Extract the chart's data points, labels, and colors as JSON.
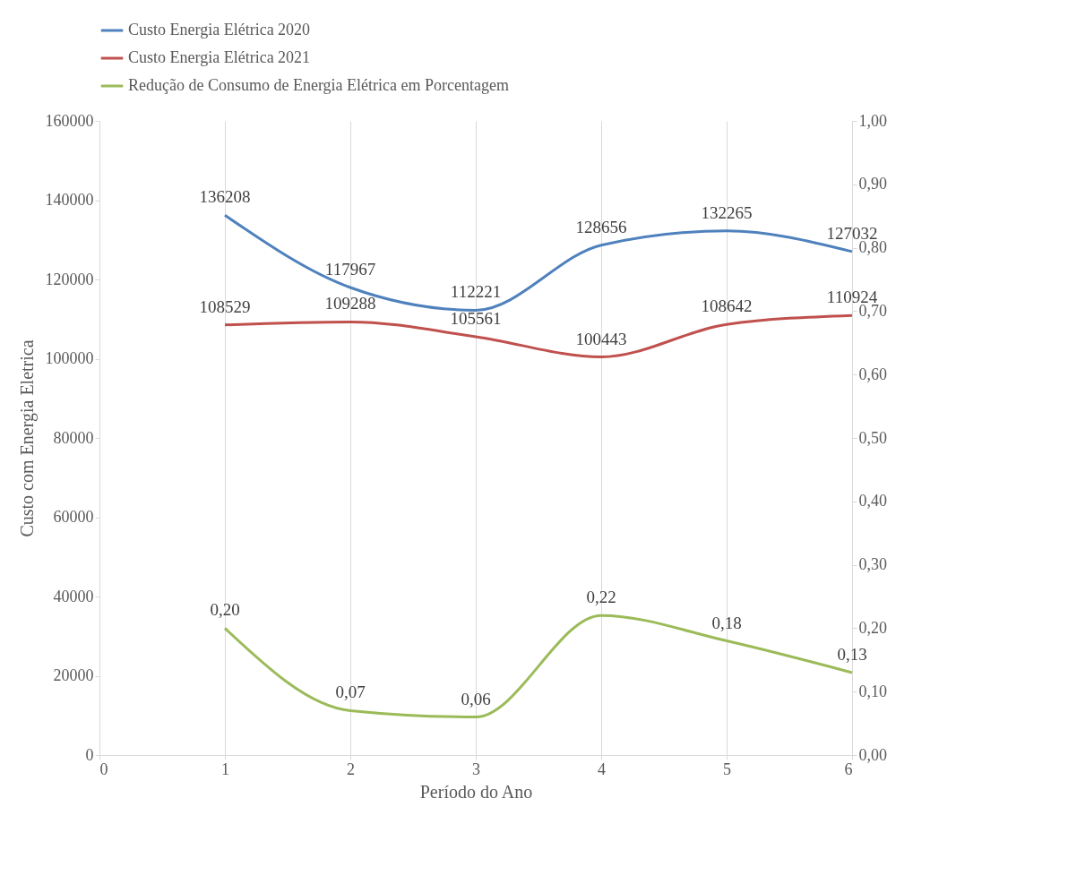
{
  "chart_data": {
    "type": "line",
    "xlabel": "Período do Ano",
    "ylabel": "Custo com Energia Eletrica",
    "x": [
      1,
      2,
      3,
      4,
      5,
      6
    ],
    "series": [
      {
        "name": "Custo Energia Elétrica 2020",
        "color": "#4f81bd",
        "values": [
          136208,
          117967,
          112221,
          128656,
          132265,
          127032
        ]
      },
      {
        "name": "Custo Energia Elétrica 2021",
        "color": "#c0504d",
        "values": [
          108529,
          109288,
          105561,
          100443,
          108642,
          110924
        ]
      },
      {
        "name": "Redução de Consumo de Energia Elétrica em Porcentagem",
        "color": "#9bbb59",
        "axis": "y2",
        "values": [
          0.2,
          0.07,
          0.06,
          0.22,
          0.18,
          0.13
        ],
        "value_labels": [
          "0,20",
          "0,07",
          "0,06",
          "0,22",
          "0,18",
          "0,13"
        ]
      }
    ],
    "xlim": [
      0,
      6
    ],
    "xticks": [
      0,
      1,
      2,
      3,
      4,
      5,
      6
    ],
    "ylim": [
      0,
      160000
    ],
    "yticks": [
      0,
      20000,
      40000,
      60000,
      80000,
      100000,
      120000,
      140000,
      160000
    ],
    "y2lim": [
      0,
      1
    ],
    "y2ticks": [
      {
        "value": 0,
        "label": "0,00"
      },
      {
        "value": 0.1,
        "label": "0,10"
      },
      {
        "value": 0.2,
        "label": "0,20"
      },
      {
        "value": 0.3,
        "label": "0,30"
      },
      {
        "value": 0.4,
        "label": "0,40"
      },
      {
        "value": 0.5,
        "label": "0,50"
      },
      {
        "value": 0.6,
        "label": "0,60"
      },
      {
        "value": 0.7,
        "label": "0,70"
      },
      {
        "value": 0.8,
        "label": "0,80"
      },
      {
        "value": 0.9,
        "label": "0,90"
      },
      {
        "value": 1,
        "label": "1,00"
      }
    ],
    "grid": "x",
    "legend": "top",
    "marker": "none",
    "line_style": "solid",
    "data_labels": true
  }
}
